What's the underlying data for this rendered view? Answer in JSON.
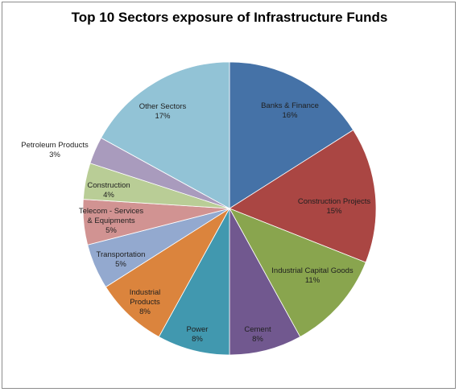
{
  "chart_data": {
    "type": "pie",
    "title": "Top 10 Sectors exposure of Infrastructure Funds",
    "slices": [
      {
        "label_lines": [
          "Banks & Finance"
        ],
        "pct_label": "16%",
        "value": 16,
        "color": "#4572a7"
      },
      {
        "label_lines": [
          "Construction Projects"
        ],
        "pct_label": "15%",
        "value": 15,
        "color": "#aa4643"
      },
      {
        "label_lines": [
          "Industrial Capital Goods"
        ],
        "pct_label": "11%",
        "value": 11,
        "color": "#89a54e"
      },
      {
        "label_lines": [
          "Cement"
        ],
        "pct_label": "8%",
        "value": 8,
        "color": "#71588f"
      },
      {
        "label_lines": [
          "Power"
        ],
        "pct_label": "8%",
        "value": 8,
        "color": "#4198af"
      },
      {
        "label_lines": [
          "Industrial",
          "Products"
        ],
        "pct_label": "8%",
        "value": 8,
        "color": "#db843d"
      },
      {
        "label_lines": [
          "Transportation"
        ],
        "pct_label": "5%",
        "value": 5,
        "color": "#93a9cf"
      },
      {
        "label_lines": [
          "Telecom - Services",
          "& Equipments"
        ],
        "pct_label": "5%",
        "value": 5,
        "color": "#d19392"
      },
      {
        "label_lines": [
          "Construction"
        ],
        "pct_label": "4%",
        "value": 4,
        "color": "#b9cd96"
      },
      {
        "label_lines": [
          "Petroleum Products"
        ],
        "pct_label": "3%",
        "value": 3,
        "color": "#a99bbd"
      },
      {
        "label_lines": [
          "Other Sectors"
        ],
        "pct_label": "17%",
        "value": 17,
        "color": "#92c3d6"
      }
    ]
  }
}
